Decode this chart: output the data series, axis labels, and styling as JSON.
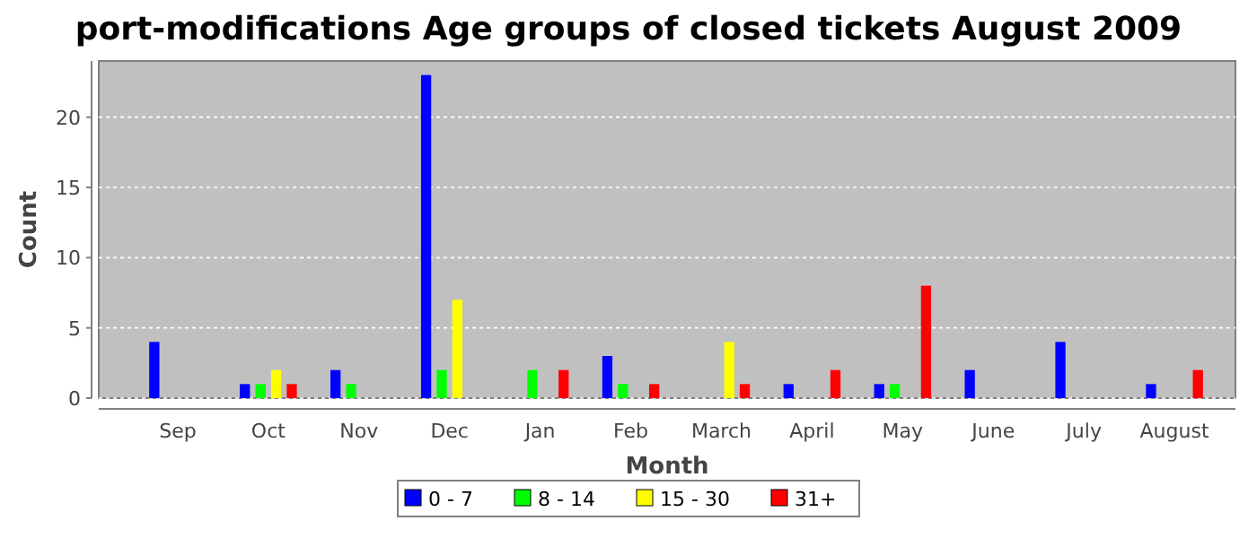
{
  "chart_data": {
    "type": "bar",
    "title": "port-modifications Age groups of closed tickets August 2009",
    "xlabel": "Month",
    "ylabel": "Count",
    "categories": [
      "Sep",
      "Oct",
      "Nov",
      "Dec",
      "Jan",
      "Feb",
      "March",
      "April",
      "May",
      "June",
      "July",
      "August"
    ],
    "series": [
      {
        "name": "0 - 7",
        "color": "#0000ff",
        "values": [
          4,
          1,
          2,
          23,
          0,
          3,
          0,
          1,
          1,
          2,
          4,
          1
        ]
      },
      {
        "name": "8 - 14",
        "color": "#00ff00",
        "values": [
          0,
          1,
          1,
          2,
          2,
          1,
          0,
          0,
          1,
          0,
          0,
          0
        ]
      },
      {
        "name": "15 - 30",
        "color": "#ffff00",
        "values": [
          0,
          2,
          0,
          7,
          0,
          0,
          4,
          0,
          0,
          0,
          0,
          0
        ]
      },
      {
        "name": "31+",
        "color": "#ff0000",
        "values": [
          0,
          1,
          0,
          0,
          2,
          1,
          1,
          2,
          8,
          0,
          0,
          2
        ]
      }
    ],
    "ylim": [
      0,
      24
    ],
    "yticks": [
      0,
      5,
      10,
      15,
      20
    ],
    "grid": "y",
    "legend": "bottom"
  }
}
